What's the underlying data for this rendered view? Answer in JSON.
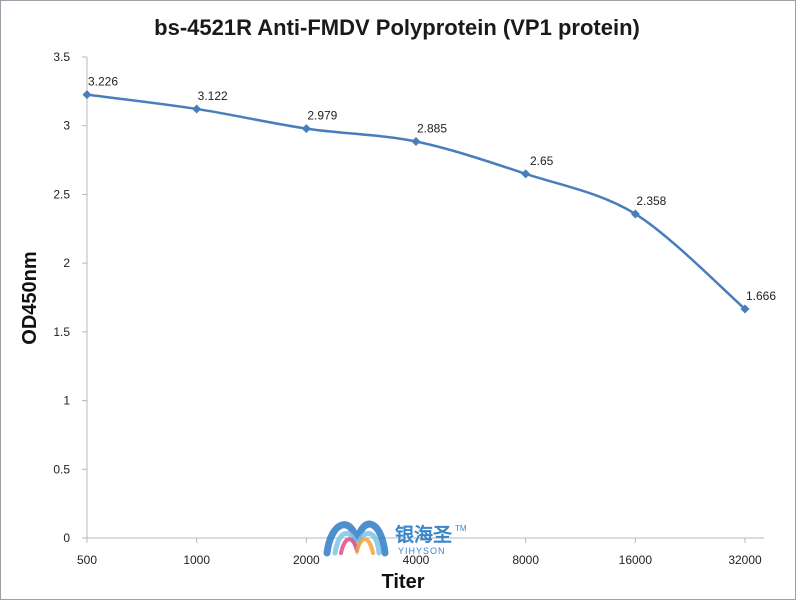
{
  "chart_data": {
    "type": "line",
    "title": "bs-4521R Anti-FMDV Polyprotein (VP1 protein)",
    "xlabel": "Titer",
    "ylabel": "OD450nm",
    "categories": [
      "500",
      "1000",
      "2000",
      "4000",
      "8000",
      "16000",
      "32000"
    ],
    "series": [
      {
        "values": [
          3.226,
          3.122,
          2.979,
          2.885,
          2.65,
          2.358,
          1.666
        ],
        "labels": [
          "3.226",
          "3.122",
          "2.979",
          "2.885",
          "2.65",
          "2.358",
          "1.666"
        ],
        "color": "#4a7ebb"
      }
    ],
    "ylim": [
      0,
      3.5
    ],
    "yticks": [
      "0",
      "0.5",
      "1",
      "1.5",
      "2",
      "2.5",
      "3",
      "3.5"
    ],
    "ytick_values": [
      0,
      0.5,
      1,
      1.5,
      2,
      2.5,
      3,
      3.5
    ],
    "grid": false,
    "legend": "none"
  },
  "watermark": {
    "text_cn": "银海圣",
    "text_en": "YIHYSON",
    "tm": "TM",
    "colors": [
      "#2f7cc4",
      "#7cc4e8",
      "#e24b8a",
      "#f4a23a"
    ]
  }
}
